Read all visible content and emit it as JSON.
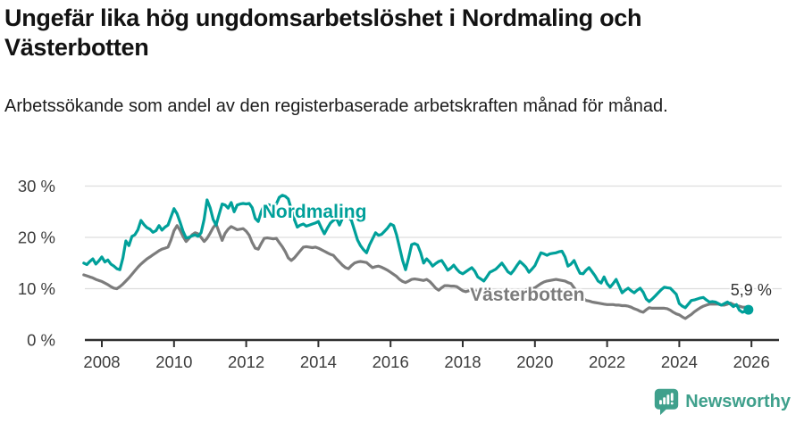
{
  "chart_data": {
    "type": "line",
    "title": "Ungefär lika hög ungdomsarbetslöshet i Nordmaling och Västerbotten",
    "subtitle": "Arbetssökande som andel av den registerbaserade arbetskraften månad för månad.",
    "x_unit": "decimal_year",
    "x_start": 2007.5,
    "x_step_months": 1,
    "x_ticks": [
      2008,
      2010,
      2012,
      2014,
      2016,
      2018,
      2020,
      2022,
      2024,
      2026
    ],
    "y_ticks": [
      0,
      10,
      20,
      30
    ],
    "y_tick_suffix": " %",
    "ylim": [
      0,
      33
    ],
    "grid": "horizontal",
    "grid_color": "#dddddd",
    "axis_color": "#2f2f2f",
    "tick_label_color": "#3d3d3d",
    "annotation": {
      "text": "5,9 %",
      "series": "Nordmaling",
      "value": 5.9
    },
    "legend_position": "inline-labels",
    "series": [
      {
        "name": "Nordmaling",
        "color": "#00a09a",
        "label": {
          "x": 2012.45,
          "y": 23.8
        },
        "values": [
          15.0,
          14.7,
          15.3,
          15.8,
          14.8,
          15.4,
          16.2,
          15.2,
          15.6,
          14.8,
          14.4,
          13.9,
          13.7,
          16.0,
          19.3,
          18.4,
          20.2,
          20.5,
          21.5,
          23.3,
          22.5,
          21.9,
          21.6,
          21.0,
          21.3,
          22.3,
          21.4,
          22.0,
          22.4,
          24.0,
          25.6,
          24.6,
          23.0,
          21.2,
          19.9,
          20.0,
          20.3,
          20.5,
          20.2,
          20.9,
          23.5,
          27.3,
          25.8,
          23.5,
          22.4,
          24.5,
          26.5,
          26.3,
          25.7,
          26.8,
          25.0,
          26.3,
          26.5,
          26.6,
          26.5,
          26.6,
          25.8,
          23.7,
          23.1,
          25.0,
          26.3,
          26.4,
          26.3,
          26.4,
          26.5,
          27.8,
          28.2,
          28.0,
          27.5,
          25.5,
          23.5,
          22.0,
          22.4,
          22.6,
          22.2,
          22.4,
          22.6,
          22.8,
          23.1,
          21.8,
          20.7,
          21.8,
          22.8,
          23.3,
          23.7,
          22.4,
          23.7,
          24.2,
          23.9,
          23.3,
          21.4,
          19.5,
          18.4,
          17.6,
          17.0,
          18.5,
          19.7,
          20.9,
          20.4,
          20.6,
          21.2,
          21.8,
          22.6,
          22.3,
          20.5,
          18.0,
          15.5,
          13.7,
          16.0,
          18.6,
          18.8,
          18.5,
          17.0,
          15.0,
          15.8,
          15.2,
          14.4,
          14.9,
          15.3,
          15.5,
          14.6,
          13.6,
          14.0,
          14.6,
          13.8,
          13.2,
          12.9,
          13.3,
          13.7,
          14.1,
          13.4,
          12.3,
          11.9,
          11.5,
          12.3,
          13.2,
          13.5,
          13.8,
          14.4,
          15.0,
          14.2,
          13.3,
          12.9,
          13.6,
          14.5,
          15.3,
          14.8,
          14.2,
          13.2,
          13.8,
          14.5,
          15.8,
          17.0,
          16.8,
          16.5,
          16.8,
          16.9,
          17.0,
          17.2,
          17.3,
          16.2,
          14.4,
          14.8,
          15.5,
          14.2,
          13.0,
          12.9,
          13.6,
          14.1,
          13.3,
          12.5,
          11.5,
          11.1,
          12.3,
          11.0,
          10.3,
          11.0,
          11.8,
          10.5,
          9.2,
          9.7,
          10.1,
          9.6,
          9.2,
          9.7,
          10.1,
          9.3,
          8.0,
          7.5,
          8.0,
          8.6,
          9.2,
          9.8,
          10.3,
          10.2,
          10.1,
          9.5,
          8.9,
          7.1,
          6.6,
          6.3,
          7.0,
          7.7,
          7.8,
          8.0,
          8.2,
          8.3,
          7.8,
          7.4,
          7.5,
          7.4,
          7.1,
          6.8,
          7.1,
          7.4,
          7.0,
          6.5,
          6.9,
          5.8,
          5.4,
          5.6,
          5.9
        ]
      },
      {
        "name": "Västerbotten",
        "color": "#7c7c7c",
        "label": {
          "x": 2018.2,
          "y": 7.65
        },
        "values": [
          12.7,
          12.5,
          12.3,
          12.1,
          11.8,
          11.6,
          11.4,
          11.1,
          10.8,
          10.4,
          10.1,
          10.0,
          10.4,
          10.9,
          11.5,
          12.1,
          12.8,
          13.5,
          14.2,
          14.8,
          15.3,
          15.8,
          16.2,
          16.6,
          17.0,
          17.4,
          17.7,
          17.9,
          18.1,
          19.5,
          21.3,
          22.3,
          21.4,
          20.2,
          19.2,
          19.8,
          20.5,
          20.9,
          20.7,
          20.0,
          19.2,
          19.8,
          20.8,
          21.9,
          22.6,
          21.0,
          19.4,
          20.8,
          21.6,
          22.1,
          21.8,
          21.5,
          21.6,
          21.7,
          21.2,
          20.4,
          19.0,
          17.9,
          17.7,
          18.8,
          19.8,
          19.9,
          19.8,
          19.7,
          19.8,
          19.0,
          18.2,
          17.2,
          16.0,
          15.5,
          16.0,
          16.7,
          17.4,
          18.1,
          18.2,
          18.1,
          18.0,
          18.1,
          17.9,
          17.6,
          17.3,
          17.0,
          16.7,
          16.5,
          15.8,
          15.2,
          14.6,
          14.1,
          13.9,
          14.5,
          15.0,
          15.2,
          15.3,
          15.2,
          15.1,
          14.6,
          14.1,
          14.3,
          14.4,
          14.2,
          13.9,
          13.6,
          13.2,
          12.8,
          12.4,
          11.8,
          11.4,
          11.2,
          11.5,
          11.8,
          11.9,
          11.8,
          11.7,
          11.6,
          11.8,
          11.4,
          10.8,
          10.1,
          9.7,
          10.2,
          10.6,
          10.6,
          10.5,
          10.5,
          10.4,
          10.0,
          9.6,
          9.4,
          9.6,
          9.7,
          9.6,
          9.5,
          9.4,
          9.2,
          9.2,
          9.3,
          9.3,
          9.4,
          9.5,
          9.4,
          9.3,
          9.2,
          9.2,
          9.2,
          9.3,
          9.5,
          9.6,
          9.8,
          9.9,
          10.0,
          10.2,
          10.6,
          11.0,
          11.3,
          11.5,
          11.6,
          11.7,
          11.8,
          11.7,
          11.6,
          11.5,
          11.2,
          11.0,
          10.2,
          9.4,
          8.8,
          8.2,
          7.7,
          7.6,
          7.4,
          7.3,
          7.2,
          7.1,
          7.0,
          6.9,
          6.9,
          6.9,
          6.8,
          6.8,
          6.7,
          6.7,
          6.6,
          6.4,
          6.1,
          5.9,
          5.6,
          5.4,
          5.9,
          6.3,
          6.2,
          6.2,
          6.2,
          6.2,
          6.2,
          6.1,
          5.8,
          5.4,
          5.1,
          4.9,
          4.5,
          4.2,
          4.6,
          5.0,
          5.5,
          5.9,
          6.3,
          6.6,
          6.8,
          7.0,
          7.0,
          7.0,
          7.0,
          6.8,
          6.8,
          7.0,
          7.2,
          6.9,
          6.7,
          6.6,
          6.4,
          6.4,
          6.5
        ]
      }
    ]
  },
  "footer": {
    "brand": "Newsworthy",
    "brand_color": "#3fa08c",
    "logo_icon": "speech-bubble-bar-chart-icon"
  }
}
